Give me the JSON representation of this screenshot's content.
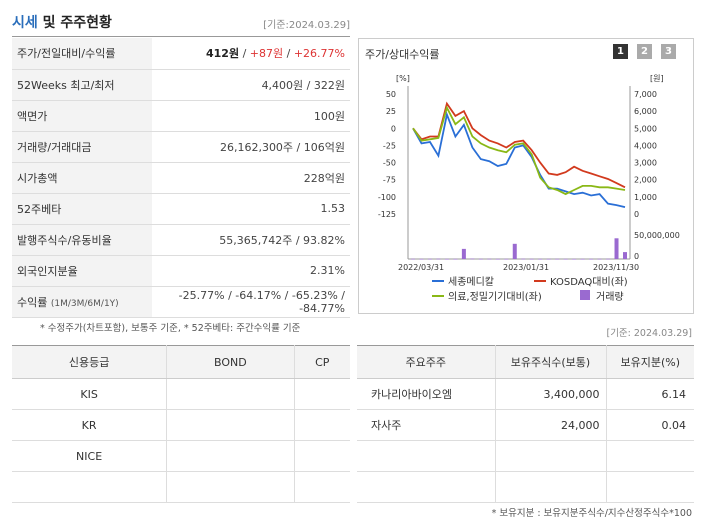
{
  "header": {
    "title_a": "시세",
    "title_b": " 및 주주현황",
    "date": "[기준:2024.03.29]"
  },
  "quote": {
    "rows": [
      {
        "label": "주가/전일대비/수익률",
        "price": "412원",
        "sep1": " / ",
        "change": "+87원",
        "sep2": " / ",
        "pct": "+26.77%"
      },
      {
        "label": "52Weeks 최고/최저",
        "value": "4,400원 / 322원"
      },
      {
        "label": "액면가",
        "value": "100원"
      },
      {
        "label": "거래량/거래대금",
        "value": "26,162,300주 / 106억원"
      },
      {
        "label": "시가총액",
        "value": "228억원"
      },
      {
        "label": "52주베타",
        "value": "1.53"
      },
      {
        "label": "발행주식수/유동비율",
        "value": "55,365,742주 / 93.82%"
      },
      {
        "label": "외국인지분율",
        "value": "2.31%"
      },
      {
        "label": "수익률",
        "sublabel": "(1M/3M/6M/1Y)",
        "value": "-25.77% / -64.17% / -65.23% / -84.77%"
      }
    ]
  },
  "notes": {
    "left": "* 수정주가(차트포함), 보통주 기준, * 52주베타: 주간수익률 기준",
    "right": "[기준: 2024.03.29]",
    "bottom": "* 보유지분 : 보유지분주식수/지수산정주식수*100"
  },
  "chart_panel": {
    "title": "주가/상대수익률",
    "tabs": [
      "1",
      "2",
      "3"
    ],
    "left_unit": "[%]",
    "right_unit": "[원]",
    "vol_label": "50,000,000",
    "vol_zero": "0"
  },
  "chart_data": {
    "type": "line",
    "x_labels": [
      "2022/03/31",
      "2023/01/31",
      "2023/11/30"
    ],
    "y_left": {
      "unit": "%",
      "ticks": [
        50,
        25,
        0,
        -25,
        -50,
        -75,
        -100,
        -125
      ]
    },
    "y_right": {
      "unit": "원",
      "ticks": [
        "7,000",
        "6,000",
        "5,000",
        "4,000",
        "3,000",
        "2,000",
        "1,000",
        "0"
      ]
    },
    "series": [
      {
        "name": "세종메디칼",
        "color": "#2a6fd6",
        "values": [
          0,
          -22,
          -20,
          -40,
          20,
          -12,
          5,
          -28,
          -45,
          -48,
          -55,
          -52,
          -28,
          -25,
          -42,
          -68,
          -88,
          -88,
          -92,
          -96,
          -94,
          -98,
          -96,
          -110,
          -112,
          -115
        ]
      },
      {
        "name": "KOSDAQ대비(좌)",
        "color": "#d23a1e",
        "values": [
          0,
          -16,
          -12,
          -12,
          36,
          18,
          25,
          0,
          -10,
          -18,
          -22,
          -28,
          -20,
          -18,
          -32,
          -50,
          -66,
          -68,
          -64,
          -56,
          -62,
          -66,
          -70,
          -74,
          -80,
          -86
        ]
      },
      {
        "name": "의료,정밀기기대비(좌)",
        "color": "#8ab816",
        "values": [
          0,
          -18,
          -16,
          -14,
          30,
          6,
          16,
          -12,
          -22,
          -28,
          -32,
          -35,
          -24,
          -22,
          -38,
          -72,
          -86,
          -90,
          -96,
          -90,
          -84,
          -84,
          -86,
          -86,
          -88,
          -90
        ]
      },
      {
        "name": "거래량",
        "color": "#9a6ad0",
        "values": [
          0,
          0,
          0,
          0,
          0,
          0,
          0,
          0,
          0,
          2,
          0,
          0,
          0,
          0,
          0,
          0,
          0,
          0,
          0,
          0,
          0,
          0,
          0,
          0,
          0,
          0
        ]
      }
    ],
    "volume": {
      "values": [
        0.5,
        0.3,
        0.4,
        0.6,
        0.3,
        0.3,
        22,
        0.8,
        0.4,
        0.5,
        0.3,
        0.3,
        33,
        0.6,
        0.4,
        0.3,
        0.3,
        0.4,
        0.3,
        0.2,
        0.3,
        0.3,
        0.4,
        0.5,
        45,
        15
      ],
      "max": 50
    }
  },
  "credit": {
    "headers": [
      "신용등급",
      "BOND",
      "CP"
    ],
    "rows": [
      [
        "KIS",
        "",
        ""
      ],
      [
        "KR",
        "",
        ""
      ],
      [
        "NICE",
        "",
        ""
      ],
      [
        "",
        "",
        ""
      ]
    ]
  },
  "holders": {
    "headers": [
      "주요주주",
      "보유주식수(보통)",
      "보유지분(%)"
    ],
    "rows": [
      [
        "카나리아바이오엠",
        "3,400,000",
        "6.14"
      ],
      [
        "자사주",
        "24,000",
        "0.04"
      ],
      [
        "",
        "",
        ""
      ],
      [
        "",
        "",
        ""
      ]
    ]
  }
}
